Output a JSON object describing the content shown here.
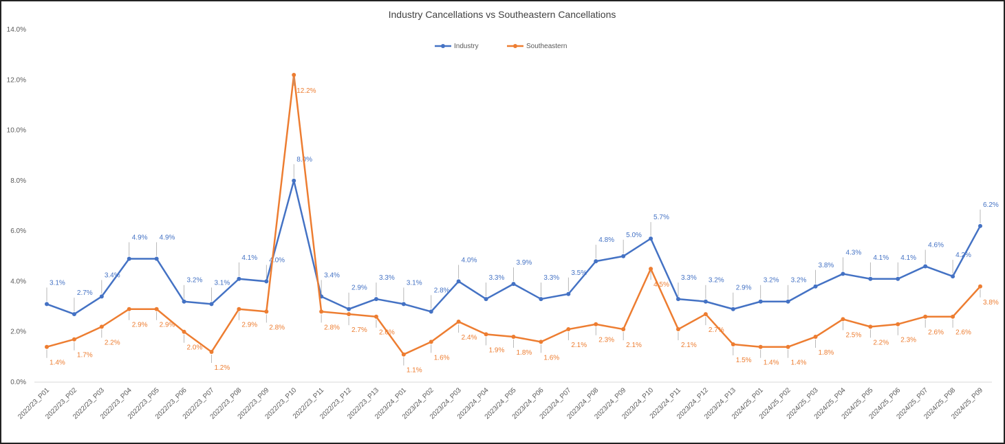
{
  "chart_data": {
    "type": "line",
    "title": "Industry Cancellations vs Southeastern Cancellations",
    "xlabel": "",
    "ylabel": "",
    "ylim": [
      0,
      14
    ],
    "yticks": [
      "0.0%",
      "2.0%",
      "4.0%",
      "6.0%",
      "8.0%",
      "10.0%",
      "12.0%",
      "14.0%"
    ],
    "grid": false,
    "legend_position": "top-center",
    "categories": [
      "2022/23_P01",
      "2022/23_P02",
      "2022/23_P03",
      "2022/23_P04",
      "2022/23_P05",
      "2022/23_P06",
      "2022/23_P07",
      "2022/23_P08",
      "2022/23_P09",
      "2022/23_P10",
      "2022/23_P11",
      "2022/23_P12",
      "2022/23_P13",
      "2023/24_P01",
      "2023/24_P02",
      "2023/24_P03",
      "2023/24_P04",
      "2023/24_P05",
      "2023/24_P06",
      "2023/24_P07",
      "2023/24_P08",
      "2023/24_P09",
      "2023/24_P10",
      "2023/24_P11",
      "2023/24_P12",
      "2023/24_P13",
      "2024/25_P01",
      "2024/25_P02",
      "2024/25_P03",
      "2024/25_P04",
      "2024/25_P05",
      "2024/25_P06",
      "2024/25_P07",
      "2024/25_P08",
      "2024/25_P09"
    ],
    "series": [
      {
        "name": "Industry",
        "color": "#4472C4",
        "values": [
          3.1,
          2.7,
          3.4,
          4.9,
          4.9,
          3.2,
          3.1,
          4.1,
          4.0,
          8.0,
          3.4,
          2.9,
          3.3,
          3.1,
          2.8,
          4.0,
          3.3,
          3.9,
          3.3,
          3.5,
          4.8,
          5.0,
          5.7,
          3.3,
          3.2,
          2.9,
          3.2,
          3.2,
          3.8,
          4.3,
          4.1,
          4.1,
          4.6,
          4.2,
          6.2
        ]
      },
      {
        "name": "Southeastern",
        "color": "#ED7D31",
        "values": [
          1.4,
          1.7,
          2.2,
          2.9,
          2.9,
          2.0,
          1.2,
          2.9,
          2.8,
          12.2,
          2.8,
          2.7,
          2.6,
          1.1,
          1.6,
          2.4,
          1.9,
          1.8,
          1.6,
          2.1,
          2.3,
          2.1,
          4.5,
          2.1,
          2.7,
          1.5,
          1.4,
          1.4,
          1.8,
          2.5,
          2.2,
          2.3,
          2.6,
          2.6,
          3.8
        ]
      }
    ],
    "value_format": "percent, 1 decimal"
  }
}
